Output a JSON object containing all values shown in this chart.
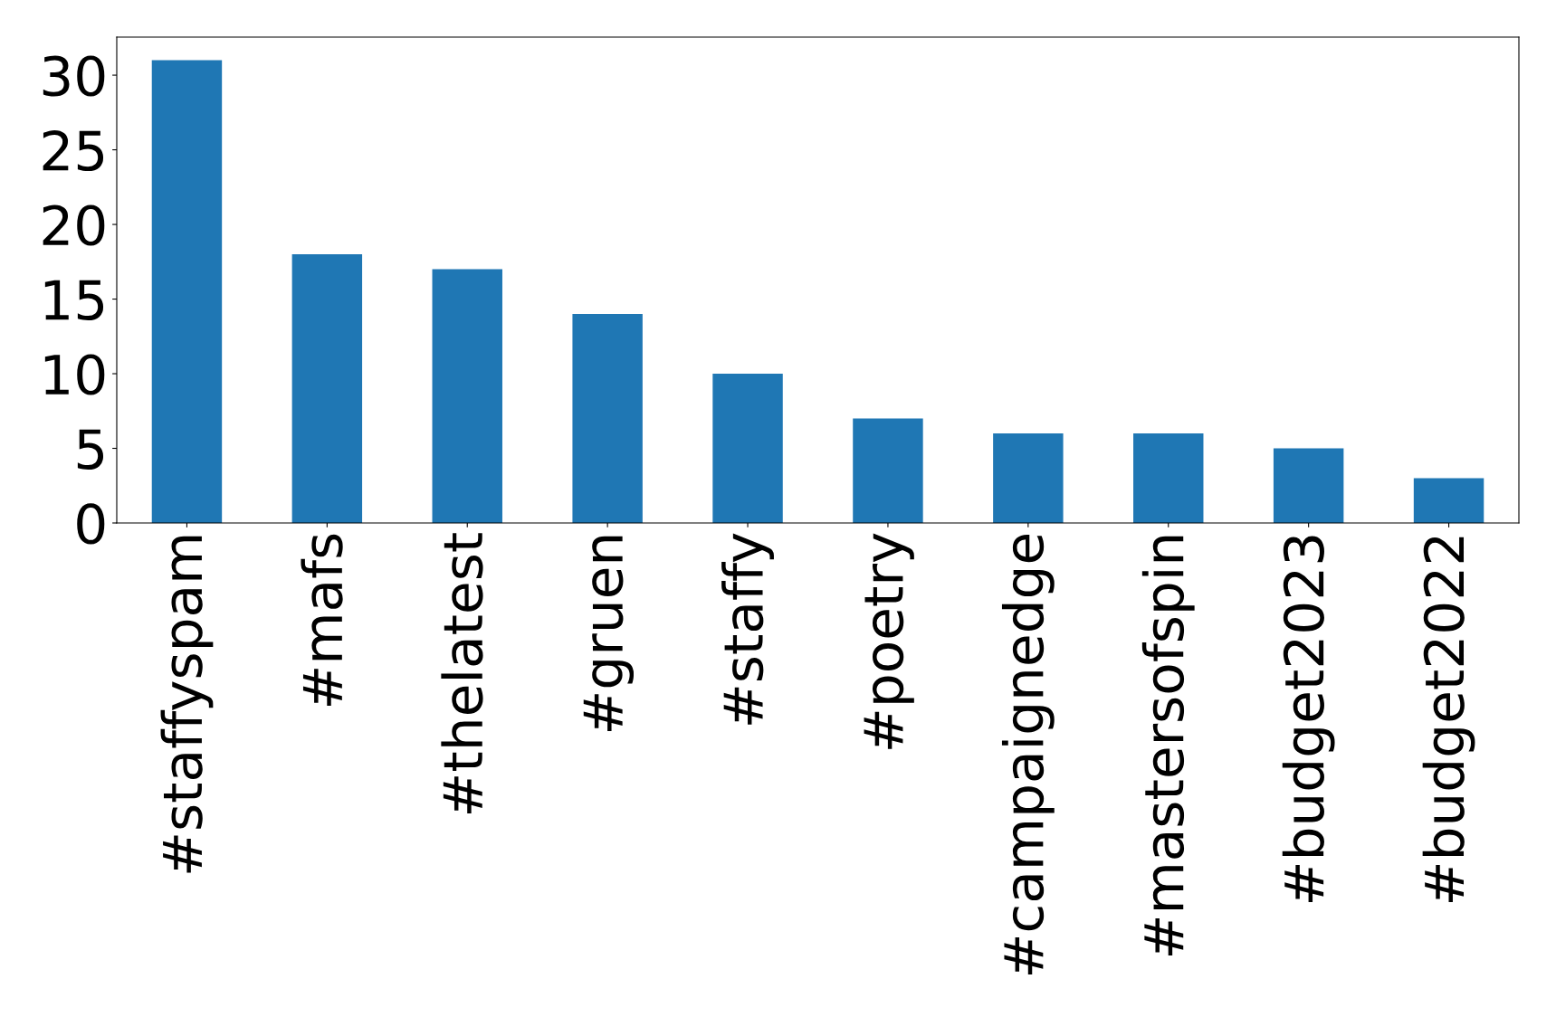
{
  "chart_data": {
    "type": "bar",
    "categories": [
      "#staffyspam",
      "#mafs",
      "#thelatest",
      "#gruen",
      "#staffy",
      "#poetry",
      "#campaignedge",
      "#mastersofspin",
      "#budget2023",
      "#budget2022"
    ],
    "values": [
      31,
      18,
      17,
      14,
      10,
      7,
      6,
      6,
      5,
      3
    ],
    "color": "#1f77b4",
    "ylim": [
      0,
      32.55
    ],
    "yticks": [
      0,
      5,
      10,
      15,
      20,
      25,
      30
    ],
    "grid": false,
    "legend": false
  }
}
